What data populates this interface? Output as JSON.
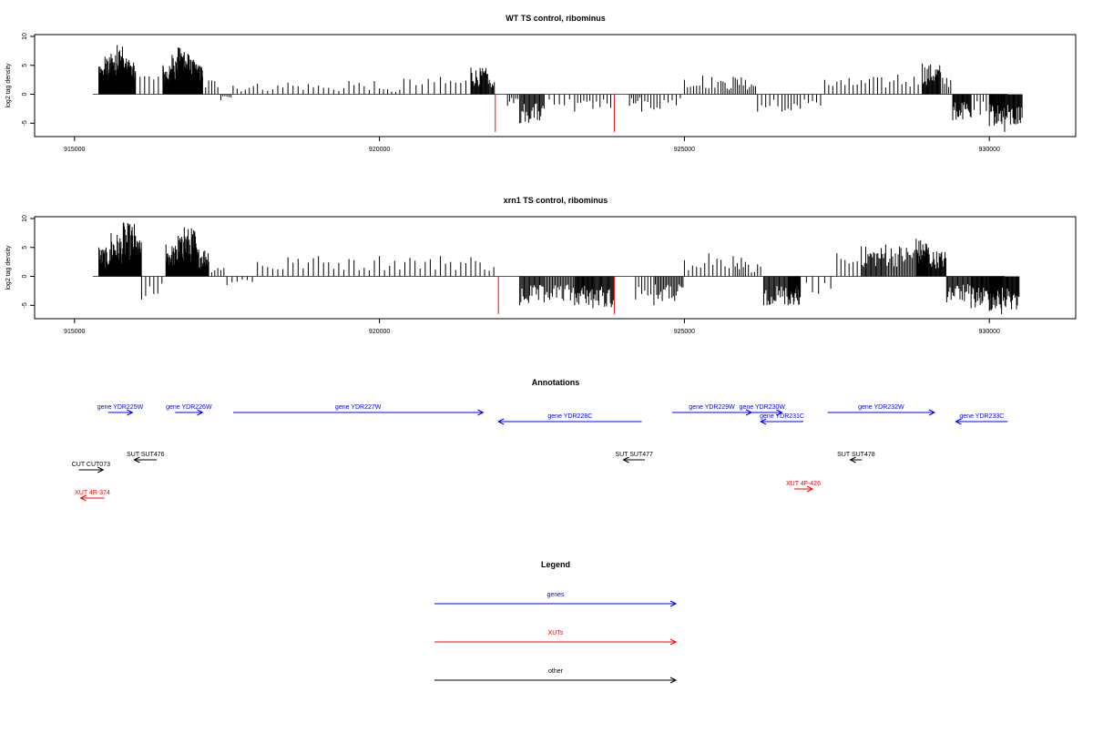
{
  "chart_data": [
    {
      "type": "bar",
      "title": "WT TS control, ribominus",
      "ylabel": "log2 tag density",
      "xlabel": "",
      "x_ticks": [
        "915000",
        "920000",
        "925000",
        "930000"
      ],
      "y_ticks": [
        "-5",
        "0",
        "5",
        "10"
      ],
      "xlim": [
        914600,
        930400
      ],
      "ylim": [
        -7,
        10
      ],
      "grid": false,
      "highlight_color": "#ff0000",
      "bar_color": "#000000",
      "series": [
        {
          "values": [
            [
              915400,
              4.8
            ],
            [
              915500,
              6.5
            ],
            [
              915600,
              7.0
            ],
            [
              915700,
              8.5
            ],
            [
              915800,
              6.2
            ],
            [
              915900,
              5.5
            ],
            [
              916000,
              4.0
            ],
            [
              916450,
              5.0
            ],
            [
              916600,
              6.8
            ],
            [
              916700,
              8.1
            ],
            [
              916800,
              7.3
            ],
            [
              916900,
              6.0
            ],
            [
              917000,
              5.2
            ],
            [
              917100,
              3.0
            ],
            [
              917400,
              -1.0
            ],
            [
              917600,
              1.5
            ],
            [
              918000,
              1.8
            ],
            [
              918500,
              2.0
            ],
            [
              919000,
              1.5
            ],
            [
              919500,
              2.3
            ],
            [
              920000,
              1.0
            ],
            [
              920400,
              2.7
            ],
            [
              921000,
              3.0
            ],
            [
              921500,
              4.6
            ],
            [
              921800,
              2.5
            ],
            [
              921900,
              -6.5
            ],
            [
              922100,
              -2.0
            ],
            [
              922300,
              -5.0
            ],
            [
              922700,
              -2.5
            ],
            [
              923200,
              -3.0
            ],
            [
              923500,
              -2.5
            ],
            [
              923850,
              -6.5
            ],
            [
              924100,
              -2.0
            ],
            [
              924300,
              -3.0
            ],
            [
              924600,
              -2.5
            ],
            [
              925000,
              2.5
            ],
            [
              925300,
              3.2
            ],
            [
              925600,
              2.3
            ],
            [
              925800,
              3.0
            ],
            [
              926000,
              2.5
            ],
            [
              926200,
              -3.0
            ],
            [
              926600,
              -3.0
            ],
            [
              926900,
              -2.5
            ],
            [
              927300,
              2.5
            ],
            [
              927700,
              2.8
            ],
            [
              928100,
              3.0
            ],
            [
              928500,
              3.4
            ],
            [
              928900,
              5.3
            ],
            [
              929200,
              3.8
            ],
            [
              929400,
              -4.5
            ],
            [
              929700,
              -4.0
            ],
            [
              930000,
              -5.5
            ],
            [
              930250,
              -6.5
            ]
          ]
        }
      ]
    },
    {
      "type": "bar",
      "title": "xrn1 TS control, ribominus",
      "ylabel": "log2 tag density",
      "xlabel": "",
      "x_ticks": [
        "915000",
        "920000",
        "925000",
        "930000"
      ],
      "y_ticks": [
        "-5",
        "0",
        "5",
        "10"
      ],
      "xlim": [
        914600,
        930400
      ],
      "ylim": [
        -7,
        10
      ],
      "grid": false,
      "highlight_color": "#ff0000",
      "bar_color": "#000000",
      "series": [
        {
          "values": [
            [
              915400,
              5.0
            ],
            [
              915600,
              7.5
            ],
            [
              915800,
              9.3
            ],
            [
              916000,
              7.0
            ],
            [
              916100,
              -4.0
            ],
            [
              916500,
              5.5
            ],
            [
              916700,
              7.0
            ],
            [
              916800,
              8.5
            ],
            [
              917000,
              5.0
            ],
            [
              917200,
              2.5
            ],
            [
              917500,
              -1.5
            ],
            [
              918000,
              2.5
            ],
            [
              918500,
              3.3
            ],
            [
              919000,
              3.5
            ],
            [
              919500,
              3.0
            ],
            [
              920000,
              3.5
            ],
            [
              920500,
              3.2
            ],
            [
              921000,
              3.5
            ],
            [
              921500,
              3.3
            ],
            [
              921950,
              -6.5
            ],
            [
              922300,
              -5.0
            ],
            [
              922700,
              -4.5
            ],
            [
              923200,
              -5.0
            ],
            [
              923500,
              -5.5
            ],
            [
              923850,
              -6.5
            ],
            [
              924200,
              -4.0
            ],
            [
              924500,
              -5.0
            ],
            [
              925000,
              2.8
            ],
            [
              925400,
              4.0
            ],
            [
              925800,
              3.5
            ],
            [
              926000,
              2.5
            ],
            [
              926300,
              -5.0
            ],
            [
              926700,
              -5.0
            ],
            [
              926900,
              -3.5
            ],
            [
              927500,
              4.0
            ],
            [
              927900,
              5.2
            ],
            [
              928300,
              5.5
            ],
            [
              928800,
              6.5
            ],
            [
              929000,
              5.0
            ],
            [
              929300,
              -4.5
            ],
            [
              929700,
              -5.5
            ],
            [
              930000,
              -6.0
            ],
            [
              930200,
              -6.5
            ]
          ]
        }
      ]
    },
    {
      "type": "annotation-track",
      "title": "Annotations",
      "xlim": [
        914600,
        930400
      ],
      "features": [
        {
          "label": "gene YDR225W",
          "kind": "gene",
          "start": 915550,
          "end": 915950,
          "strand": "+",
          "row": 0
        },
        {
          "label": "gene YDR226W",
          "kind": "gene",
          "start": 916650,
          "end": 917100,
          "strand": "+",
          "row": 0
        },
        {
          "label": "gene YDR227W",
          "kind": "gene",
          "start": 917600,
          "end": 921700,
          "strand": "+",
          "row": 0
        },
        {
          "label": "gene YDR228C",
          "kind": "gene",
          "start": 921950,
          "end": 924300,
          "strand": "-",
          "row": 1
        },
        {
          "label": "gene YDR229W",
          "kind": "gene",
          "start": 924800,
          "end": 926100,
          "strand": "+",
          "row": 0
        },
        {
          "label": "gene YDR230W",
          "kind": "gene",
          "start": 925950,
          "end": 926600,
          "strand": "+",
          "row": 0
        },
        {
          "label": "gene YDR231C",
          "kind": "gene",
          "start": 926250,
          "end": 926950,
          "strand": "-",
          "row": 1
        },
        {
          "label": "gene YDR232W",
          "kind": "gene",
          "start": 927350,
          "end": 929100,
          "strand": "+",
          "row": 0
        },
        {
          "label": "gene YDR233C",
          "kind": "gene",
          "start": 929450,
          "end": 930300,
          "strand": "-",
          "row": 1
        },
        {
          "label": "SUT SUT476",
          "kind": "other",
          "start": 915980,
          "end": 916350,
          "strand": "-",
          "row": 2
        },
        {
          "label": "SUT SUT477",
          "kind": "other",
          "start": 924000,
          "end": 924350,
          "strand": "-",
          "row": 2
        },
        {
          "label": "SUT SUT478",
          "kind": "other",
          "start": 927720,
          "end": 927910,
          "strand": "-",
          "row": 2
        },
        {
          "label": "CUT CUT073",
          "kind": "other",
          "start": 915070,
          "end": 915470,
          "strand": "+",
          "row": 3
        },
        {
          "label": "XUT 4R-374",
          "kind": "xut",
          "start": 915100,
          "end": 915490,
          "strand": "-",
          "row": 4
        },
        {
          "label": "XUT 4F-426",
          "kind": "xut",
          "start": 926800,
          "end": 927100,
          "strand": "+",
          "row": 5
        }
      ]
    },
    {
      "type": "legend",
      "title": "Legend",
      "entries": [
        {
          "label": "genes",
          "color": "#0000ff"
        },
        {
          "label": "XUTs",
          "color": "#ff0000"
        },
        {
          "label": "other",
          "color": "#000000"
        }
      ]
    }
  ],
  "colors": {
    "gene": "#0000ff",
    "xut": "#ff0000",
    "other": "#000000",
    "axis": "#000000",
    "baseline": "#555555"
  }
}
